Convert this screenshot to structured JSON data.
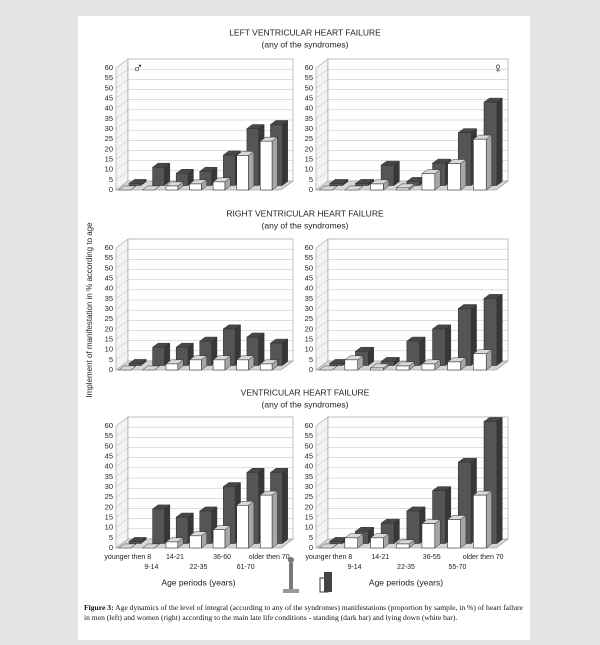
{
  "sections": [
    {
      "title": "LEFT VENTRICULAR HEART FAILURE",
      "subtitle": "(any of the syndromes)"
    },
    {
      "title": "RIGHT VENTRICULAR HEART FAILURE",
      "subtitle": "(any of the syndromes)"
    },
    {
      "title": "VENTRICULAR HEART FAILURE",
      "subtitle": "(any of the syndromes)"
    }
  ],
  "ylabel": "Implement of manifestation in % according to age",
  "chart_data": [
    {
      "type": "bar",
      "annotation": "♂",
      "categories": [
        null,
        null,
        null,
        null,
        null,
        null,
        null
      ],
      "series": [
        {
          "color": "#555555",
          "values": [
            1,
            9,
            6,
            7,
            15,
            28,
            30
          ]
        },
        {
          "color": "#ffffff",
          "values": [
            0,
            0,
            2,
            3,
            4,
            17,
            24
          ]
        }
      ],
      "ylim": [
        0,
        60
      ],
      "yticks": [
        0,
        5,
        10,
        15,
        20,
        25,
        30,
        35,
        40,
        45,
        50,
        55,
        60
      ],
      "grid": true
    },
    {
      "type": "bar",
      "annotation": "♀",
      "categories": [
        null,
        null,
        null,
        null,
        null,
        null,
        null
      ],
      "series": [
        {
          "color": "#555555",
          "values": [
            1,
            1,
            10,
            2,
            11,
            26,
            41
          ]
        },
        {
          "color": "#ffffff",
          "values": [
            0,
            0,
            3,
            1,
            8,
            13,
            25
          ]
        }
      ],
      "ylim": [
        0,
        60
      ],
      "yticks": [
        0,
        5,
        10,
        15,
        20,
        25,
        30,
        35,
        40,
        45,
        50,
        55,
        60
      ],
      "grid": true
    },
    {
      "type": "bar",
      "categories": [
        null,
        null,
        null,
        null,
        null,
        null,
        null
      ],
      "series": [
        {
          "color": "#555555",
          "values": [
            1,
            9,
            9,
            12,
            18,
            14,
            11
          ]
        },
        {
          "color": "#ffffff",
          "values": [
            0,
            0,
            3,
            5,
            5,
            5,
            3
          ]
        }
      ],
      "ylim": [
        0,
        60
      ],
      "yticks": [
        0,
        5,
        10,
        15,
        20,
        25,
        30,
        35,
        40,
        45,
        50,
        55,
        60
      ],
      "grid": true
    },
    {
      "type": "bar",
      "categories": [
        null,
        null,
        null,
        null,
        null,
        null,
        null
      ],
      "series": [
        {
          "color": "#555555",
          "values": [
            1,
            7,
            2,
            12,
            18,
            28,
            33
          ]
        },
        {
          "color": "#ffffff",
          "values": [
            0,
            5,
            1,
            2,
            3,
            4,
            8
          ]
        }
      ],
      "ylim": [
        0,
        60
      ],
      "yticks": [
        0,
        5,
        10,
        15,
        20,
        25,
        30,
        35,
        40,
        45,
        50,
        55,
        60
      ],
      "grid": true
    },
    {
      "type": "bar",
      "xlabel": "Age periods (years)",
      "categories": [
        "younger then 8",
        "9-14",
        "14-21",
        "22-35",
        "36-60",
        "61-70",
        "older then 70"
      ],
      "series": [
        {
          "color": "#555555",
          "values": [
            1,
            17,
            13,
            16,
            28,
            35,
            35
          ]
        },
        {
          "color": "#ffffff",
          "values": [
            0,
            0,
            3,
            6,
            9,
            21,
            26
          ]
        }
      ],
      "ylim": [
        0,
        60
      ],
      "yticks": [
        0,
        5,
        10,
        15,
        20,
        25,
        30,
        35,
        40,
        45,
        50,
        55,
        60
      ],
      "grid": true
    },
    {
      "type": "bar",
      "xlabel": "Age periods (years)",
      "categories": [
        "younger then 8",
        "9-14",
        "14-21",
        "22-35",
        "36-55",
        "55-70",
        "older then 70"
      ],
      "series": [
        {
          "color": "#555555",
          "values": [
            1,
            6,
            10,
            16,
            26,
            40,
            60
          ]
        },
        {
          "color": "#ffffff",
          "values": [
            0,
            5,
            5,
            2,
            12,
            14,
            26
          ]
        }
      ],
      "ylim": [
        0,
        60
      ],
      "yticks": [
        0,
        5,
        10,
        15,
        20,
        25,
        30,
        35,
        40,
        45,
        50,
        55,
        60
      ],
      "grid": true
    }
  ],
  "caption": {
    "label": "Figure 3:",
    "text": "Age dynamics of the level of integral (according to any of the syndromes) manifestations (proportion by sample, in %) of heart failure in men (left) and women (right) according to the main late life conditions - standing (dark bar) and lying down (white bar)."
  }
}
